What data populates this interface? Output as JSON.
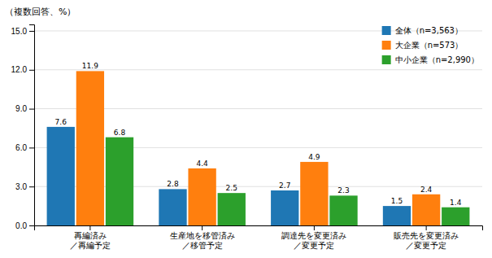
{
  "chart_data": {
    "type": "bar",
    "ylabel": "（複数回答、%）",
    "categories": [
      "再編済み\n／再編予定",
      "生産地を移管済み\n／移管予定",
      "調達先を変更済み\n／変更予定",
      "販売先を変更済み\n／変更予定"
    ],
    "series": [
      {
        "name": "全体（n=3,563）",
        "values": [
          7.6,
          2.8,
          2.7,
          1.5
        ]
      },
      {
        "name": "大企業（n=573）",
        "values": [
          11.9,
          4.4,
          4.9,
          2.4
        ]
      },
      {
        "name": "中小企業（n=2,990）",
        "values": [
          6.8,
          2.5,
          2.3,
          1.4
        ]
      }
    ],
    "ylim": [
      0,
      15.5
    ],
    "yticks": [
      {
        "value": 0.0,
        "label": "0.0"
      },
      {
        "value": 3.0,
        "label": "3.0"
      },
      {
        "value": 6.0,
        "label": "6.0"
      },
      {
        "value": 9.0,
        "label": "9.0"
      },
      {
        "value": 12.0,
        "label": "12.0"
      },
      {
        "value": 15.0,
        "label": "15.0"
      }
    ],
    "grid": true,
    "legend": "upper right",
    "data_labels": true
  }
}
